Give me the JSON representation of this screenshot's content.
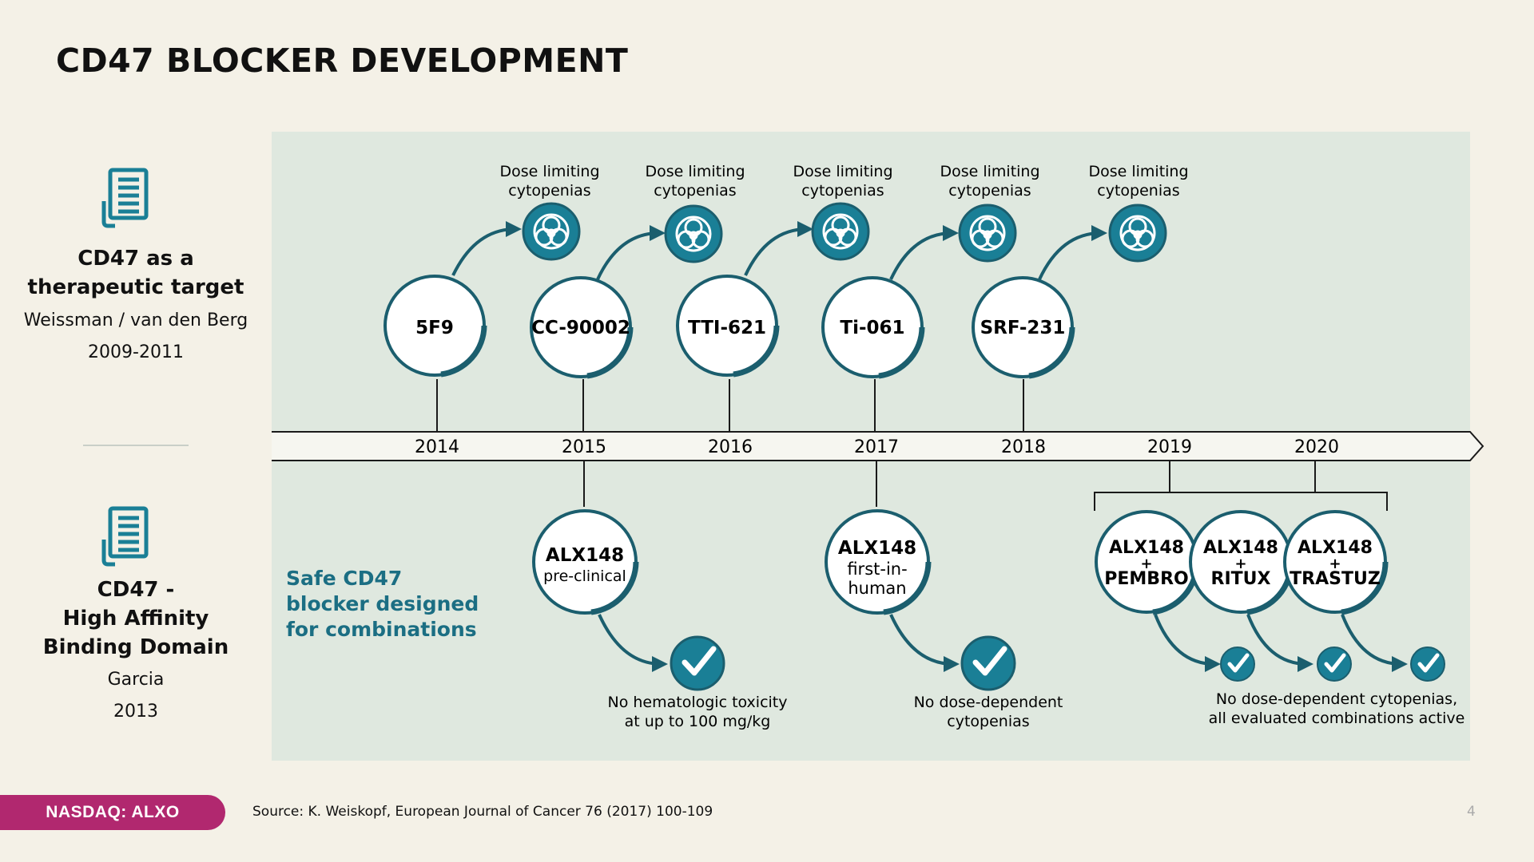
{
  "title": "CD47 BLOCKER DEVELOPMENT",
  "left_column": {
    "block1": {
      "icon": "document-icon",
      "heading_lines": [
        "CD47 as a",
        "therapeutic target"
      ],
      "authors": "Weissman / van den Berg",
      "years": "2009-2011"
    },
    "block2": {
      "icon": "document-icon",
      "heading_lines": [
        "CD47 -",
        "High Affinity",
        "Binding Domain"
      ],
      "authors": "Garcia",
      "years": "2013"
    }
  },
  "timeline": {
    "years": [
      "2014",
      "2015",
      "2016",
      "2017",
      "2018",
      "2019",
      "2020"
    ],
    "competitors": [
      {
        "name": "5F9",
        "year": "2014",
        "outcome_lines": [
          "Dose limiting",
          "cytopenias"
        ],
        "outcome_icon": "biohazard-icon"
      },
      {
        "name": "CC-90002",
        "year": "2015",
        "outcome_lines": [
          "Dose limiting",
          "cytopenias"
        ],
        "outcome_icon": "biohazard-icon"
      },
      {
        "name": "TTI-621",
        "year": "2016",
        "outcome_lines": [
          "Dose limiting",
          "cytopenias"
        ],
        "outcome_icon": "biohazard-icon"
      },
      {
        "name": "Ti-061",
        "year": "2017",
        "outcome_lines": [
          "Dose limiting",
          "cytopenias"
        ],
        "outcome_icon": "biohazard-icon"
      },
      {
        "name": "SRF-231",
        "year": "2018",
        "outcome_lines": [
          "Dose limiting",
          "cytopenias"
        ],
        "outcome_icon": "biohazard-icon"
      }
    ],
    "alx_tagline_lines": [
      "Safe CD47",
      "blocker designed",
      "for combinations"
    ],
    "alx_milestones": [
      {
        "lines": [
          "ALX148",
          "pre-clinical"
        ],
        "year": "2015",
        "outcome_lines": [
          "No hematologic toxicity",
          "at up to 100 mg/kg"
        ],
        "outcome_icon": "checkmark-icon"
      },
      {
        "lines": [
          "ALX148",
          "first-in-",
          "human"
        ],
        "year": "2017",
        "outcome_lines": [
          "No dose-dependent",
          "cytopenias"
        ],
        "outcome_icon": "checkmark-icon"
      }
    ],
    "alx_combinations": [
      {
        "lines": [
          "ALX148",
          "+",
          "PEMBRO"
        ]
      },
      {
        "lines": [
          "ALX148",
          "+",
          "RITUX"
        ]
      },
      {
        "lines": [
          "ALX148",
          "+",
          "TRASTUZ"
        ]
      }
    ],
    "combination_years": [
      "2019",
      "2020"
    ],
    "combination_outcome_lines": [
      "No dose-dependent cytopenias,",
      "all evaluated combinations active"
    ],
    "colors": {
      "teal": "#1a7f96",
      "dark_teal": "#1b5e6e",
      "panel": "#dfe8df",
      "tagline": "#1b6e83"
    }
  },
  "footer": {
    "ticker": "NASDAQ: ALXO",
    "source": "Source: K. Weiskopf, European Journal of Cancer 76 (2017) 100-109",
    "page_number": "4"
  }
}
